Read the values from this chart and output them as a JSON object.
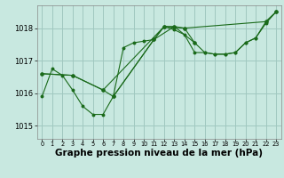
{
  "bg_color": "#c8e8e0",
  "grid_color": "#a0c8c0",
  "line_color": "#1a6a1a",
  "marker_color": "#1a6a1a",
  "xlabel": "Graphe pression niveau de la mer (hPa)",
  "xlabel_fontsize": 7.5,
  "yticks": [
    1015,
    1016,
    1017,
    1018
  ],
  "xticks": [
    0,
    1,
    2,
    3,
    4,
    5,
    6,
    7,
    8,
    9,
    10,
    11,
    12,
    13,
    14,
    15,
    16,
    17,
    18,
    19,
    20,
    21,
    22,
    23
  ],
  "xlim": [
    -0.5,
    23.5
  ],
  "ylim": [
    1014.6,
    1018.7
  ],
  "series": {
    "s0": {
      "x": [
        0,
        1,
        2,
        3,
        4,
        5,
        6,
        7,
        8,
        9,
        10,
        11,
        12,
        13,
        14,
        15,
        16,
        17,
        18,
        19,
        20,
        21,
        22,
        23
      ],
      "y": [
        1015.9,
        1016.75,
        1016.55,
        1016.1,
        1015.6,
        1015.35,
        1015.35,
        1015.9,
        1017.4,
        1017.55,
        1017.6,
        1017.65,
        1018.05,
        1017.95,
        1017.8,
        1017.25,
        1017.25,
        1017.2,
        1017.2,
        1017.25,
        1017.55,
        1017.7,
        1018.15,
        1018.5
      ]
    },
    "s1": {
      "x": [
        0,
        3,
        6,
        12,
        14,
        22,
        23
      ],
      "y": [
        1016.6,
        1016.55,
        1016.1,
        1018.05,
        1018.0,
        1018.2,
        1018.5
      ]
    },
    "s2": {
      "x": [
        7,
        11,
        13,
        15
      ],
      "y": [
        1015.9,
        1017.65,
        1018.05,
        1017.55
      ]
    },
    "s3": {
      "x": [
        0,
        3,
        6,
        7,
        11,
        12,
        13,
        14,
        15,
        16,
        17,
        18,
        19,
        20,
        21,
        22,
        23
      ],
      "y": [
        1016.6,
        1016.55,
        1016.1,
        1015.9,
        1017.65,
        1018.05,
        1018.05,
        1018.0,
        1017.55,
        1017.25,
        1017.2,
        1017.2,
        1017.25,
        1017.55,
        1017.7,
        1018.2,
        1018.5
      ]
    }
  }
}
